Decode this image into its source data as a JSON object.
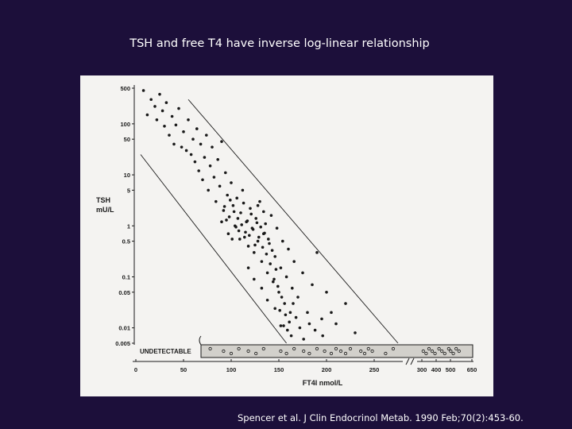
{
  "slide": {
    "title": "TSH and free T4 have inverse log-linear relationship",
    "citation": "Spencer et al. J Clin Endocrinol Metab. 1990 Feb;70(2):453-60."
  },
  "colors": {
    "background": "#1c0f3a",
    "panel": "#f4f3f1",
    "ink": "#1a1a1a",
    "undetectable_band": "#d2d0cb"
  },
  "chart_data": {
    "type": "scatter",
    "ylabel": "TSH mU/L",
    "xlabel": "FT4I nmol/L",
    "y_scale": "log",
    "ylim": [
      0.005,
      500
    ],
    "xlim": [
      0,
      650
    ],
    "x_axis_break": "between 275 and 300",
    "grid": false,
    "y_ticks": [
      {
        "value": 500,
        "label": "500"
      },
      {
        "value": 100,
        "label": "100"
      },
      {
        "value": 50,
        "label": "50"
      },
      {
        "value": 10,
        "label": "10"
      },
      {
        "value": 5,
        "label": "5"
      },
      {
        "value": 1,
        "label": "1"
      },
      {
        "value": 0.5,
        "label": "0.5"
      },
      {
        "value": 0.1,
        "label": "0.1"
      },
      {
        "value": 0.05,
        "label": "0.05"
      },
      {
        "value": 0.01,
        "label": "0.01"
      },
      {
        "value": 0.005,
        "label": "0.005"
      }
    ],
    "x_ticks": [
      {
        "value": 0,
        "label": "0"
      },
      {
        "value": 50,
        "label": "50"
      },
      {
        "value": 100,
        "label": "100"
      },
      {
        "value": 150,
        "label": "150"
      },
      {
        "value": 200,
        "label": "200"
      },
      {
        "value": 250,
        "label": "250"
      },
      {
        "value": 300,
        "label": "300"
      },
      {
        "value": 400,
        "label": "400"
      },
      {
        "value": 500,
        "label": "500"
      },
      {
        "value": 650,
        "label": "650"
      }
    ],
    "undetectable_label": "UNDETECTABLE",
    "reference_lines": [
      {
        "name": "upper",
        "from": {
          "x": 55,
          "y": 300
        },
        "to": {
          "x": 275,
          "y": 0.005
        }
      },
      {
        "name": "lower",
        "from": {
          "x": 5,
          "y": 25
        },
        "to": {
          "x": 158,
          "y": 0.005
        }
      }
    ],
    "points": [
      {
        "x": 8,
        "y": 450
      },
      {
        "x": 12,
        "y": 150
      },
      {
        "x": 16,
        "y": 300
      },
      {
        "x": 20,
        "y": 220
      },
      {
        "x": 22,
        "y": 120
      },
      {
        "x": 25,
        "y": 380
      },
      {
        "x": 28,
        "y": 180
      },
      {
        "x": 30,
        "y": 90
      },
      {
        "x": 32,
        "y": 260
      },
      {
        "x": 35,
        "y": 60
      },
      {
        "x": 38,
        "y": 140
      },
      {
        "x": 40,
        "y": 40
      },
      {
        "x": 42,
        "y": 95
      },
      {
        "x": 45,
        "y": 200
      },
      {
        "x": 48,
        "y": 35
      },
      {
        "x": 50,
        "y": 70
      },
      {
        "x": 53,
        "y": 30
      },
      {
        "x": 55,
        "y": 120
      },
      {
        "x": 58,
        "y": 25
      },
      {
        "x": 60,
        "y": 50
      },
      {
        "x": 62,
        "y": 18
      },
      {
        "x": 64,
        "y": 80
      },
      {
        "x": 66,
        "y": 12
      },
      {
        "x": 68,
        "y": 40
      },
      {
        "x": 70,
        "y": 8
      },
      {
        "x": 72,
        "y": 22
      },
      {
        "x": 74,
        "y": 60
      },
      {
        "x": 76,
        "y": 5
      },
      {
        "x": 78,
        "y": 15
      },
      {
        "x": 80,
        "y": 35
      },
      {
        "x": 82,
        "y": 9
      },
      {
        "x": 84,
        "y": 3
      },
      {
        "x": 86,
        "y": 20
      },
      {
        "x": 88,
        "y": 6
      },
      {
        "x": 90,
        "y": 45
      },
      {
        "x": 92,
        "y": 2
      },
      {
        "x": 94,
        "y": 11
      },
      {
        "x": 96,
        "y": 4
      },
      {
        "x": 98,
        "y": 1.5
      },
      {
        "x": 100,
        "y": 7
      },
      {
        "x": 102,
        "y": 2.5
      },
      {
        "x": 104,
        "y": 1
      },
      {
        "x": 106,
        "y": 3.5
      },
      {
        "x": 108,
        "y": 0.8
      },
      {
        "x": 110,
        "y": 1.8
      },
      {
        "x": 112,
        "y": 5
      },
      {
        "x": 114,
        "y": 0.6
      },
      {
        "x": 116,
        "y": 1.2
      },
      {
        "x": 118,
        "y": 0.4
      },
      {
        "x": 120,
        "y": 2.2
      },
      {
        "x": 122,
        "y": 0.9
      },
      {
        "x": 124,
        "y": 0.3
      },
      {
        "x": 126,
        "y": 1.4
      },
      {
        "x": 128,
        "y": 0.5
      },
      {
        "x": 130,
        "y": 3
      },
      {
        "x": 132,
        "y": 0.2
      },
      {
        "x": 134,
        "y": 0.7
      },
      {
        "x": 136,
        "y": 1.1
      },
      {
        "x": 138,
        "y": 0.12
      },
      {
        "x": 140,
        "y": 0.45
      },
      {
        "x": 142,
        "y": 1.6
      },
      {
        "x": 144,
        "y": 0.08
      },
      {
        "x": 146,
        "y": 0.25
      },
      {
        "x": 148,
        "y": 0.9
      },
      {
        "x": 150,
        "y": 0.05
      },
      {
        "x": 152,
        "y": 0.15
      },
      {
        "x": 154,
        "y": 0.5
      },
      {
        "x": 156,
        "y": 0.03
      },
      {
        "x": 158,
        "y": 0.1
      },
      {
        "x": 160,
        "y": 0.35
      },
      {
        "x": 162,
        "y": 0.02
      },
      {
        "x": 164,
        "y": 0.06
      },
      {
        "x": 166,
        "y": 0.2
      },
      {
        "x": 170,
        "y": 0.04
      },
      {
        "x": 175,
        "y": 0.12
      },
      {
        "x": 180,
        "y": 0.02
      },
      {
        "x": 185,
        "y": 0.07
      },
      {
        "x": 190,
        "y": 0.3
      },
      {
        "x": 195,
        "y": 0.015
      },
      {
        "x": 200,
        "y": 0.05
      },
      {
        "x": 205,
        "y": 0.02
      },
      {
        "x": 210,
        "y": 0.012
      },
      {
        "x": 220,
        "y": 0.03
      },
      {
        "x": 230,
        "y": 0.008
      },
      {
        "x": 95,
        "y": 1.3
      },
      {
        "x": 97,
        "y": 0.7
      },
      {
        "x": 103,
        "y": 1.9
      },
      {
        "x": 105,
        "y": 0.95
      },
      {
        "x": 107,
        "y": 1.4
      },
      {
        "x": 109,
        "y": 0.55
      },
      {
        "x": 111,
        "y": 1.05
      },
      {
        "x": 113,
        "y": 2.8
      },
      {
        "x": 115,
        "y": 0.75
      },
      {
        "x": 117,
        "y": 1.25
      },
      {
        "x": 119,
        "y": 0.65
      },
      {
        "x": 121,
        "y": 1.7
      },
      {
        "x": 123,
        "y": 0.85
      },
      {
        "x": 125,
        "y": 0.42
      },
      {
        "x": 127,
        "y": 1.15
      },
      {
        "x": 129,
        "y": 0.6
      },
      {
        "x": 131,
        "y": 0.95
      },
      {
        "x": 133,
        "y": 0.38
      },
      {
        "x": 135,
        "y": 0.72
      },
      {
        "x": 137,
        "y": 0.28
      },
      {
        "x": 139,
        "y": 0.55
      },
      {
        "x": 141,
        "y": 0.18
      },
      {
        "x": 143,
        "y": 0.33
      },
      {
        "x": 145,
        "y": 0.09
      },
      {
        "x": 147,
        "y": 0.14
      },
      {
        "x": 149,
        "y": 0.065
      },
      {
        "x": 151,
        "y": 0.022
      },
      {
        "x": 153,
        "y": 0.04
      },
      {
        "x": 155,
        "y": 0.011
      },
      {
        "x": 157,
        "y": 0.018
      },
      {
        "x": 159,
        "y": 0.009
      },
      {
        "x": 161,
        "y": 0.013
      },
      {
        "x": 163,
        "y": 0.007
      },
      {
        "x": 165,
        "y": 0.03
      },
      {
        "x": 168,
        "y": 0.016
      },
      {
        "x": 172,
        "y": 0.01
      },
      {
        "x": 176,
        "y": 0.006
      },
      {
        "x": 182,
        "y": 0.012
      },
      {
        "x": 188,
        "y": 0.009
      },
      {
        "x": 196,
        "y": 0.007
      },
      {
        "x": 90,
        "y": 1.2
      },
      {
        "x": 93,
        "y": 2.4
      },
      {
        "x": 99,
        "y": 3.2
      },
      {
        "x": 101,
        "y": 0.55
      },
      {
        "x": 118,
        "y": 0.15
      },
      {
        "x": 124,
        "y": 0.09
      },
      {
        "x": 132,
        "y": 0.06
      },
      {
        "x": 138,
        "y": 0.035
      },
      {
        "x": 146,
        "y": 0.024
      },
      {
        "x": 152,
        "y": 0.011
      },
      {
        "x": 128,
        "y": 2.5
      },
      {
        "x": 134,
        "y": 1.9
      }
    ],
    "undetectable_points_x": [
      78,
      92,
      100,
      108,
      118,
      126,
      134,
      152,
      158,
      166,
      176,
      182,
      190,
      198,
      205,
      210,
      215,
      220,
      225,
      236,
      240,
      244,
      248,
      262,
      270,
      310,
      330,
      350,
      372,
      392,
      420,
      440,
      460,
      488,
      502,
      520,
      540,
      560
    ]
  }
}
